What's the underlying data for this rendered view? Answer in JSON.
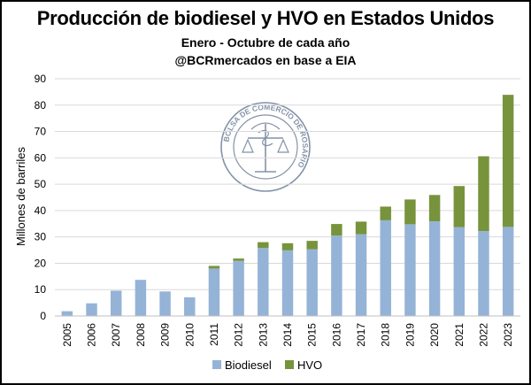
{
  "header": {
    "title": "Producción de biodiesel y HVO en Estados Unidos",
    "subtitle": "Enero - Octubre de cada año",
    "source": "@BCRmercados en base a EIA"
  },
  "logo": {
    "text": "BOLSA DE COMERCIO DE ROSARIO"
  },
  "chart_data": {
    "type": "bar",
    "stacked": true,
    "categories": [
      "2005",
      "2006",
      "2007",
      "2008",
      "2009",
      "2010",
      "2011",
      "2012",
      "2013",
      "2014",
      "2015",
      "2016",
      "2017",
      "2018",
      "2019",
      "2020",
      "2021",
      "2022",
      "2023"
    ],
    "series": [
      {
        "name": "Biodiesel",
        "color": "#95B3D7",
        "values": [
          1.8,
          4.8,
          9.6,
          13.7,
          9.3,
          7.1,
          18.0,
          20.9,
          25.8,
          24.9,
          25.3,
          30.5,
          31.0,
          36.3,
          34.8,
          35.9,
          33.7,
          32.2,
          33.8
        ]
      },
      {
        "name": "HVO",
        "color": "#77933C",
        "values": [
          0,
          0,
          0,
          0,
          0,
          0,
          1.0,
          0.9,
          2.2,
          2.7,
          3.2,
          4.4,
          4.8,
          5.2,
          9.4,
          10.0,
          15.6,
          28.4,
          50.1
        ]
      }
    ],
    "ylabel": "Millones de barriles",
    "xlabel": "",
    "ylim": [
      0,
      90
    ],
    "yticks": [
      0,
      10,
      20,
      30,
      40,
      50,
      60,
      70,
      80,
      90
    ],
    "grid": true,
    "legend": "bottom"
  }
}
